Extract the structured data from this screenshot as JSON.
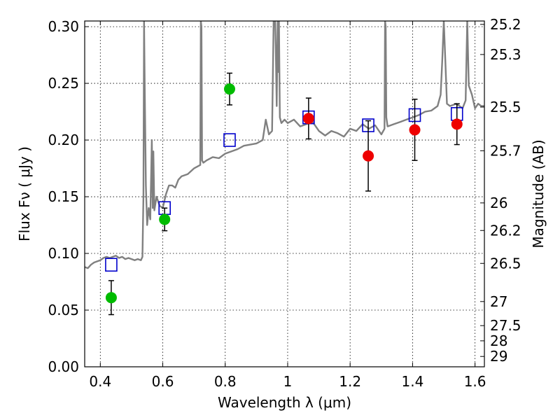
{
  "chart_data": {
    "type": "scatter",
    "title": "",
    "xlabel": "Wavelength  λ (μm)",
    "ylabel": "Flux  Fν  ( μJy )",
    "ylabel_right": "Magnitude (AB)",
    "xlim": [
      0.35,
      1.63
    ],
    "ylim": [
      0.0,
      0.305
    ],
    "grid": true,
    "x_ticks": [
      {
        "value": 0.4,
        "label": "0.4"
      },
      {
        "value": 0.6,
        "label": "0.6"
      },
      {
        "value": 0.8,
        "label": "0.8"
      },
      {
        "value": 1.0,
        "label": "1"
      },
      {
        "value": 1.2,
        "label": "1.2"
      },
      {
        "value": 1.4,
        "label": "1.4"
      },
      {
        "value": 1.6,
        "label": "1.6"
      }
    ],
    "y_ticks": [
      {
        "value": 0.0,
        "label": "0.00"
      },
      {
        "value": 0.05,
        "label": "0.05"
      },
      {
        "value": 0.1,
        "label": "0.10"
      },
      {
        "value": 0.15,
        "label": "0.15"
      },
      {
        "value": 0.2,
        "label": "0.20"
      },
      {
        "value": 0.25,
        "label": "0.25"
      },
      {
        "value": 0.3,
        "label": "0.30"
      }
    ],
    "mag_ticks": [
      {
        "value": 25.2,
        "label": "25.2"
      },
      {
        "value": 25.3,
        "label": "25.3"
      },
      {
        "value": 25.5,
        "label": "25.5"
      },
      {
        "value": 25.7,
        "label": "25.7"
      },
      {
        "value": 26.0,
        "label": "26"
      },
      {
        "value": 26.2,
        "label": "26.2"
      },
      {
        "value": 26.5,
        "label": "26.5"
      },
      {
        "value": 27.0,
        "label": "27"
      },
      {
        "value": 27.5,
        "label": "27.5"
      },
      {
        "value": 28.0,
        "label": "28"
      },
      {
        "value": 29.0,
        "label": "29"
      }
    ],
    "series": [
      {
        "kind": "line",
        "color": "#808080",
        "x": [
          0.35,
          0.36,
          0.37,
          0.38,
          0.39,
          0.4,
          0.41,
          0.42,
          0.43,
          0.44,
          0.45,
          0.46,
          0.47,
          0.48,
          0.49,
          0.5,
          0.51,
          0.52,
          0.53,
          0.535,
          0.538,
          0.54,
          0.542,
          0.546,
          0.55,
          0.555,
          0.56,
          0.565,
          0.568,
          0.57,
          0.573,
          0.58,
          0.59,
          0.6,
          0.61,
          0.62,
          0.63,
          0.64,
          0.65,
          0.66,
          0.68,
          0.7,
          0.72,
          0.722,
          0.724,
          0.726,
          0.73,
          0.74,
          0.76,
          0.78,
          0.8,
          0.82,
          0.84,
          0.86,
          0.9,
          0.92,
          0.93,
          0.94,
          0.95,
          0.955,
          0.958,
          0.96,
          0.962,
          0.965,
          0.968,
          0.97,
          0.972,
          0.975,
          0.98,
          0.99,
          1.0,
          1.02,
          1.04,
          1.06,
          1.08,
          1.1,
          1.12,
          1.14,
          1.16,
          1.18,
          1.2,
          1.22,
          1.24,
          1.26,
          1.28,
          1.3,
          1.31,
          1.312,
          1.314,
          1.316,
          1.32,
          1.34,
          1.36,
          1.38,
          1.4,
          1.42,
          1.44,
          1.46,
          1.48,
          1.49,
          1.495,
          1.5,
          1.505,
          1.51,
          1.52,
          1.54,
          1.56,
          1.57,
          1.575,
          1.58,
          1.59,
          1.6,
          1.61,
          1.62,
          1.63
        ],
        "y": [
          0.088,
          0.087,
          0.09,
          0.092,
          0.093,
          0.094,
          0.096,
          0.097,
          0.096,
          0.097,
          0.098,
          0.096,
          0.097,
          0.095,
          0.096,
          0.095,
          0.094,
          0.095,
          0.094,
          0.097,
          0.15,
          0.305,
          0.25,
          0.16,
          0.125,
          0.14,
          0.13,
          0.2,
          0.14,
          0.19,
          0.138,
          0.15,
          0.142,
          0.14,
          0.152,
          0.16,
          0.16,
          0.158,
          0.165,
          0.168,
          0.17,
          0.175,
          0.178,
          0.305,
          0.3,
          0.182,
          0.18,
          0.182,
          0.185,
          0.184,
          0.188,
          0.19,
          0.192,
          0.195,
          0.197,
          0.2,
          0.218,
          0.205,
          0.208,
          0.305,
          0.305,
          0.305,
          0.28,
          0.23,
          0.305,
          0.26,
          0.305,
          0.22,
          0.215,
          0.218,
          0.215,
          0.218,
          0.212,
          0.214,
          0.216,
          0.208,
          0.204,
          0.208,
          0.206,
          0.203,
          0.21,
          0.208,
          0.214,
          0.21,
          0.213,
          0.205,
          0.21,
          0.305,
          0.3,
          0.22,
          0.212,
          0.214,
          0.216,
          0.218,
          0.22,
          0.222,
          0.225,
          0.226,
          0.23,
          0.24,
          0.27,
          0.305,
          0.27,
          0.232,
          0.23,
          0.232,
          0.228,
          0.235,
          0.305,
          0.248,
          0.24,
          0.228,
          0.232,
          0.23,
          0.23
        ]
      },
      {
        "kind": "markers",
        "marker": "square",
        "color": "#0000cc",
        "x": [
          0.435,
          0.606,
          0.814,
          1.067,
          1.258,
          1.407,
          1.542
        ],
        "y": [
          0.09,
          0.14,
          0.2,
          0.22,
          0.213,
          0.222,
          0.223
        ]
      },
      {
        "kind": "markers",
        "marker": "circle",
        "color": "#00bb00",
        "x": [
          0.435,
          0.606,
          0.814
        ],
        "y": [
          0.061,
          0.13,
          0.245
        ],
        "err": [
          0.015,
          0.01,
          0.014
        ]
      },
      {
        "kind": "markers",
        "marker": "circle",
        "color": "#ee0000",
        "x": [
          1.067,
          1.258,
          1.407,
          1.542
        ],
        "y": [
          0.219,
          0.186,
          0.209,
          0.214
        ],
        "err": [
          0.018,
          0.031,
          0.027,
          0.018
        ]
      }
    ]
  }
}
